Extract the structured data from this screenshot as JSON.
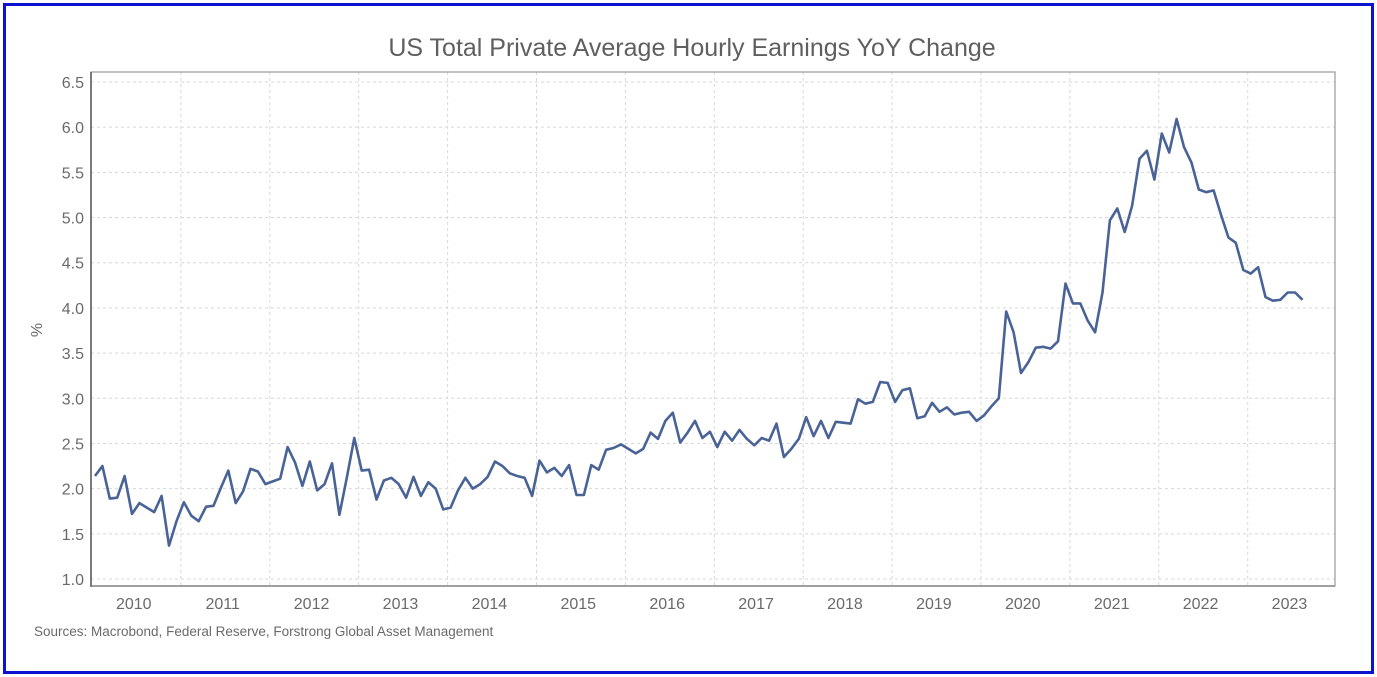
{
  "chart_data": {
    "type": "line",
    "title": "US Total Private Average Hourly Earnings YoY Change",
    "xlabel": "",
    "ylabel": "%",
    "ylim": [
      1.0,
      6.5
    ],
    "yticks": [
      "1.0",
      "1.5",
      "2.0",
      "2.5",
      "3.0",
      "3.5",
      "4.0",
      "4.5",
      "5.0",
      "5.5",
      "6.0",
      "6.5"
    ],
    "xticks": [
      "2010",
      "2011",
      "2012",
      "2013",
      "2014",
      "2015",
      "2016",
      "2017",
      "2018",
      "2019",
      "2020",
      "2021",
      "2022",
      "2023"
    ],
    "grid": true,
    "frequency": "monthly",
    "start": "2010-01",
    "series": [
      {
        "name": "US Total Private Average Hourly Earnings YoY",
        "color": "#4a6396",
        "values": [
          2.14,
          2.25,
          1.89,
          1.9,
          2.14,
          1.72,
          1.84,
          1.79,
          1.74,
          1.92,
          1.37,
          1.64,
          1.85,
          1.7,
          1.64,
          1.8,
          1.81,
          2.01,
          2.2,
          1.84,
          1.97,
          2.22,
          2.19,
          2.05,
          2.08,
          2.11,
          2.46,
          2.29,
          2.03,
          2.3,
          1.98,
          2.05,
          2.28,
          1.71,
          2.12,
          2.56,
          2.2,
          2.21,
          1.88,
          2.09,
          2.12,
          2.05,
          1.9,
          2.13,
          1.92,
          2.07,
          2.0,
          1.77,
          1.79,
          1.98,
          2.12,
          2.0,
          2.05,
          2.13,
          2.3,
          2.25,
          2.17,
          2.14,
          2.12,
          1.92,
          2.31,
          2.18,
          2.23,
          2.14,
          2.26,
          1.93,
          1.93,
          2.26,
          2.21,
          2.43,
          2.45,
          2.49,
          2.44,
          2.39,
          2.44,
          2.62,
          2.55,
          2.75,
          2.84,
          2.51,
          2.62,
          2.75,
          2.56,
          2.63,
          2.46,
          2.63,
          2.53,
          2.65,
          2.55,
          2.48,
          2.56,
          2.53,
          2.72,
          2.35,
          2.44,
          2.55,
          2.79,
          2.58,
          2.75,
          2.56,
          2.74,
          2.73,
          2.72,
          2.99,
          2.94,
          2.96,
          3.18,
          3.17,
          2.96,
          3.09,
          3.11,
          2.78,
          2.8,
          2.95,
          2.85,
          2.9,
          2.82,
          2.84,
          2.85,
          2.75,
          2.81,
          2.91,
          3.0,
          3.96,
          3.73,
          3.28,
          3.4,
          3.56,
          3.57,
          3.55,
          3.63,
          4.27,
          4.05,
          4.05,
          3.86,
          3.73,
          4.17,
          4.97,
          5.1,
          4.84,
          5.13,
          5.65,
          5.74,
          5.42,
          5.93,
          5.72,
          6.09,
          5.78,
          5.61,
          5.31,
          5.28,
          5.3,
          5.03,
          4.78,
          4.72,
          4.42,
          4.38,
          4.45,
          4.12,
          4.08,
          4.09,
          4.17,
          4.17,
          4.09
        ]
      }
    ],
    "source": "Sources: Macrobond, Federal Reserve, Forstrong Global Asset Management"
  }
}
